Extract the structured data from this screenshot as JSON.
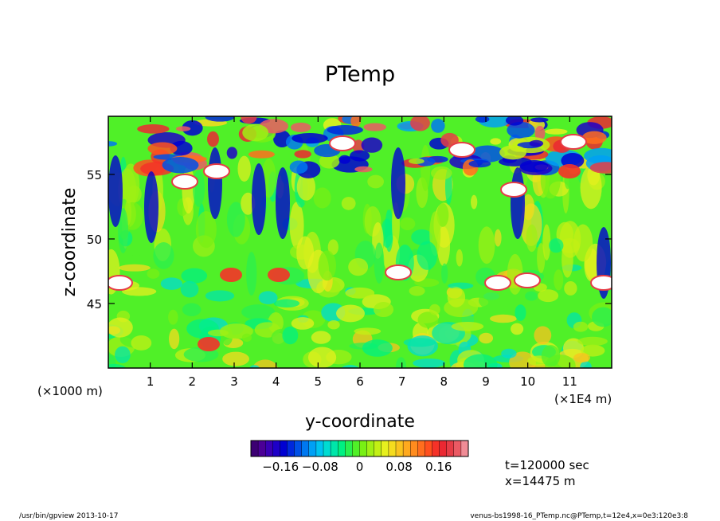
{
  "chart_data": {
    "type": "heatmap",
    "title": "PTemp",
    "xlabel": "y-coordinate",
    "ylabel": "z-coordinate",
    "x_unit_left": "(×1000 m)",
    "x_unit_right": "(×1E4 m)",
    "x_ticks": [
      1,
      2,
      3,
      4,
      5,
      6,
      7,
      8,
      9,
      10,
      11
    ],
    "y_ticks": [
      45,
      50,
      55
    ],
    "xlim": [
      0,
      12
    ],
    "ylim": [
      40,
      59.5
    ],
    "colorbar": {
      "ticks": [
        "−0.16",
        "−0.08",
        "0",
        "0.08",
        "0.16"
      ],
      "tick_values": [
        -0.16,
        -0.08,
        0,
        0.08,
        0.16
      ],
      "range": [
        -0.22,
        0.22
      ],
      "levels": 30,
      "colors": [
        "#3c0073",
        "#4b0096",
        "#3a00b4",
        "#1e00c8",
        "#0000d2",
        "#0028dc",
        "#0050e6",
        "#0078f0",
        "#00a0f5",
        "#00c3f0",
        "#00dcd2",
        "#00e6aa",
        "#00f082",
        "#28f050",
        "#50f028",
        "#78f014",
        "#a0f014",
        "#c3f014",
        "#e6f01e",
        "#f5dc1e",
        "#fac31e",
        "#ffaa1e",
        "#ff8c1e",
        "#ff6e1e",
        "#ff501e",
        "#f53228",
        "#eb2832",
        "#e63c46",
        "#eb5a64",
        "#f08c96"
      ]
    },
    "annotations": [
      "t=120000 sec",
      "x=14475 m"
    ]
  },
  "footer": {
    "left": "/usr/bin/gpview   2013-10-17",
    "right": "venus-bs1998-16_PTemp.nc@PTemp,t=12e4,x=0e3:120e3:8"
  }
}
